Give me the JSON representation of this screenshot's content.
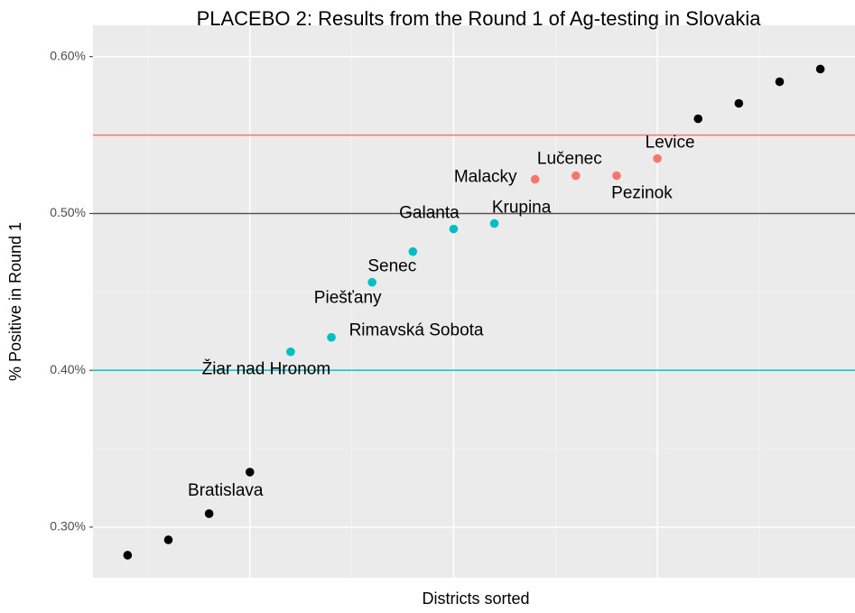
{
  "chart_data": {
    "type": "scatter",
    "title": "PLACEBO 2: Results from the Round 1 of Ag-testing in Slovakia",
    "x_label": "Districts sorted",
    "y_label": "% Positive in Round 1",
    "xlim": [
      0.15,
      18.85
    ],
    "ylim": [
      0.2677,
      0.62
    ],
    "xticks": [
      4,
      9,
      14
    ],
    "x_minor_ticks": [
      1.5,
      6.5,
      11.5,
      16.5
    ],
    "yticks": [
      {
        "value": 0.3,
        "label": "0.30%"
      },
      {
        "value": 0.4,
        "label": "0.40%"
      },
      {
        "value": 0.5,
        "label": "0.50%"
      },
      {
        "value": 0.6,
        "label": "0.60%"
      }
    ],
    "y_minor_ticks": [
      0.35,
      0.45,
      0.55
    ],
    "grid": true,
    "hlines": [
      {
        "value": 0.55,
        "color": "#F8766D"
      },
      {
        "value": 0.5,
        "color": "#555555"
      },
      {
        "value": 0.4,
        "color": "#00BFC4"
      }
    ],
    "series": [
      {
        "color": "#000000",
        "x": [
          1,
          2,
          3,
          4,
          15,
          16,
          17,
          18
        ],
        "values": [
          0.2821,
          0.2919,
          0.3086,
          0.3351,
          0.5604,
          0.5702,
          0.584,
          0.5921
        ],
        "labels": [
          null,
          null,
          null,
          "Bratislava",
          null,
          null,
          null,
          null
        ]
      },
      {
        "color": "#00BFC4",
        "x": [
          5,
          6,
          7,
          8,
          9,
          10
        ],
        "values": [
          0.4118,
          0.421,
          0.4561,
          0.4757,
          0.4901,
          0.4936
        ],
        "labels": [
          "Žiar nad Hronom",
          "Rimavská Sobota",
          "Piešťany",
          "Senec",
          "Galanta",
          "Krupina"
        ]
      },
      {
        "color": "#F8766D",
        "x": [
          11,
          12,
          13,
          14
        ],
        "values": [
          0.5218,
          0.5241,
          0.5241,
          0.535
        ],
        "labels": [
          "Malacky",
          "Lučenec",
          "Pezinok",
          "Levice"
        ]
      }
    ]
  }
}
